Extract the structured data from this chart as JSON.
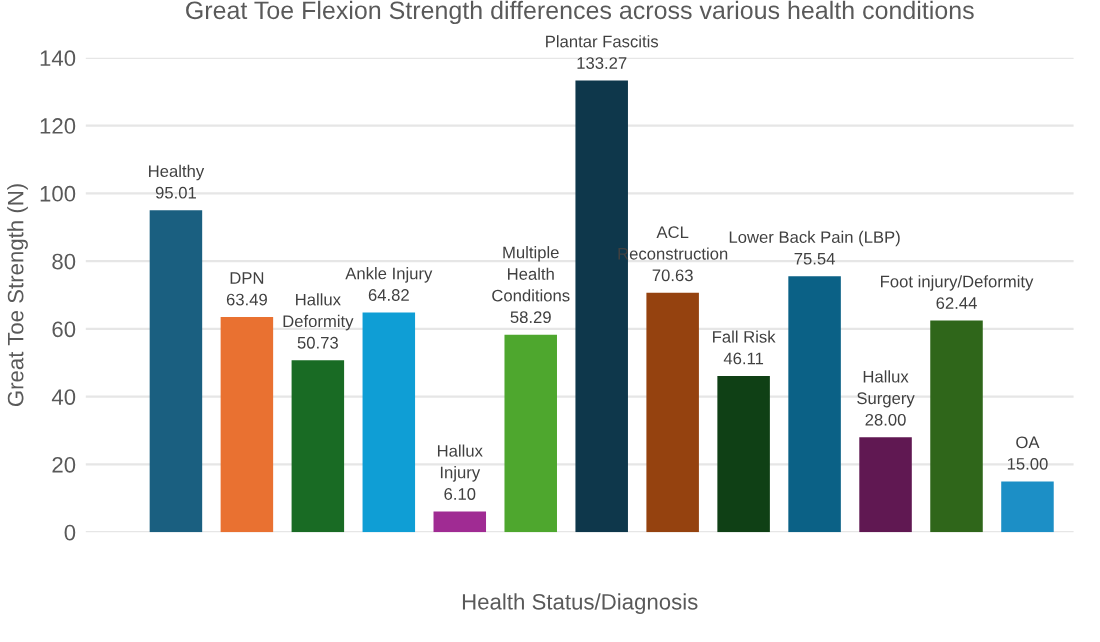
{
  "chart_data": {
    "type": "bar",
    "title": "Great Toe Flexion Strength differences across various health conditions",
    "xlabel": "Health Status/Diagnosis",
    "ylabel": "Great Toe Strength (N)",
    "categories": [
      "Healthy",
      "DPN",
      "Hallux\nDeformity",
      "Ankle Injury",
      "Hallux\nInjury",
      "Multiple\nHealth\nConditions",
      "Plantar Fascitis",
      "ACL\nReconstruction",
      "Fall Risk",
      "Lower Back Pain (LBP)",
      "Hallux\nSurgery",
      "Foot injury/Deformity",
      "OA"
    ],
    "values": [
      95.01,
      63.49,
      50.73,
      64.82,
      6.1,
      58.29,
      133.27,
      70.63,
      46.11,
      75.54,
      28.0,
      62.44,
      15.0
    ],
    "value_labels": [
      "95.01",
      "63.49",
      "50.73",
      "64.82",
      "6.10",
      "58.29",
      "133.27",
      "70.63",
      "46.11",
      "75.54",
      "28.00",
      "62.44",
      "15.00"
    ],
    "colors": [
      "#1a5f80",
      "#e97131",
      "#196b24",
      "#0f9ed5",
      "#a02b93",
      "#4ea72e",
      "#0e374b",
      "#95420f",
      "#0f4015",
      "#0b6186",
      "#601852",
      "#2f661a",
      "#1c8fc6"
    ],
    "ylim": [
      0,
      140
    ],
    "yticks": [
      0,
      20,
      40,
      60,
      80,
      100,
      120,
      140
    ],
    "grid": "y",
    "tick_labels": "y"
  }
}
